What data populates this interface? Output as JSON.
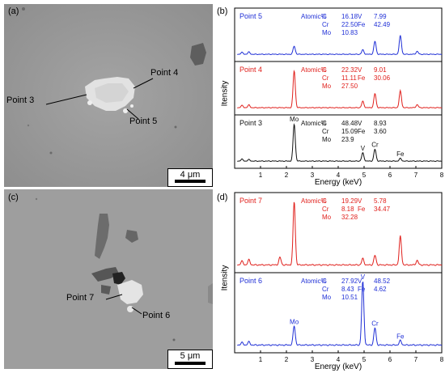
{
  "panels": {
    "a": {
      "letter": "(a)",
      "scale_label": "4 μm",
      "point_labels": [
        "Point 4",
        "Point 3",
        "Point 5"
      ]
    },
    "b": {
      "letter": "(b)"
    },
    "c": {
      "letter": "(c)",
      "scale_label": "5 μm",
      "point_labels": [
        "Point 7",
        "Point 6"
      ]
    },
    "d": {
      "letter": "(d)"
    }
  },
  "colors": {
    "blue": "#1f2fd6",
    "red": "#e0201c",
    "black": "#111111"
  },
  "chart_data": [
    {
      "type": "line",
      "panel": "b",
      "xlabel": "Energy (keV)",
      "ylabel": "Itensity",
      "xlim": [
        0,
        8
      ],
      "xticks": [
        1,
        2,
        3,
        4,
        5,
        6,
        7,
        8
      ],
      "spectra": [
        {
          "name": "Point 5",
          "color": "#1f2fd6",
          "table": [
            [
              "Atomic%",
              "C",
              "16.18",
              "V",
              "7.99"
            ],
            [
              "",
              "Cr",
              "22.50",
              "Fe",
              "42.49"
            ],
            [
              "",
              "Mo",
              "10.83",
              "",
              ""
            ]
          ],
          "peaks": [
            [
              0.28,
              0.05
            ],
            [
              0.55,
              0.06
            ],
            [
              2.3,
              0.22
            ],
            [
              4.95,
              0.12
            ],
            [
              5.42,
              0.35
            ],
            [
              6.4,
              0.5
            ],
            [
              7.05,
              0.08
            ]
          ],
          "peak_labels": []
        },
        {
          "name": "Point 4",
          "color": "#e0201c",
          "table": [
            [
              "Atomic%",
              "C",
              "22.32",
              "V",
              "9.01"
            ],
            [
              "",
              "Cr",
              "11.11",
              "Fe",
              "30.06"
            ],
            [
              "",
              "Mo",
              "27.50",
              "",
              ""
            ]
          ],
          "peaks": [
            [
              0.28,
              0.06
            ],
            [
              0.55,
              0.07
            ],
            [
              2.3,
              1.0
            ],
            [
              4.95,
              0.17
            ],
            [
              5.42,
              0.38
            ],
            [
              6.4,
              0.45
            ],
            [
              7.05,
              0.08
            ]
          ],
          "peak_labels": []
        },
        {
          "name": "Point 3",
          "color": "#111111",
          "table": [
            [
              "Atomic%",
              "C",
              "48.48",
              "V",
              "8.93"
            ],
            [
              "",
              "Cr",
              "15.09",
              "Fe",
              "3.60"
            ],
            [
              "",
              "Mo",
              "23.9",
              "",
              ""
            ]
          ],
          "peaks": [
            [
              0.28,
              0.05
            ],
            [
              0.55,
              0.04
            ],
            [
              2.3,
              1.0
            ],
            [
              4.95,
              0.22
            ],
            [
              5.42,
              0.32
            ],
            [
              6.4,
              0.07
            ]
          ],
          "peak_labels": [
            {
              "text": "Mo",
              "x": 2.3
            },
            {
              "text": "V",
              "x": 4.95
            },
            {
              "text": "Cr",
              "x": 5.42
            },
            {
              "text": "Fe",
              "x": 6.4
            }
          ]
        }
      ]
    },
    {
      "type": "line",
      "panel": "d",
      "xlabel": "Energy (keV)",
      "ylabel": "Itensity",
      "xlim": [
        0,
        8
      ],
      "xticks": [
        1,
        2,
        3,
        4,
        5,
        6,
        7,
        8
      ],
      "spectra": [
        {
          "name": "Point 7",
          "color": "#e0201c",
          "table": [
            [
              "Atomic%",
              "C",
              "19.29",
              "V",
              "5.78"
            ],
            [
              "",
              "Cr",
              "8.18",
              "Fe",
              "34.47"
            ],
            [
              "",
              "Mo",
              "32.28",
              "",
              ""
            ]
          ],
          "peaks": [
            [
              0.28,
              0.06
            ],
            [
              0.55,
              0.08
            ],
            [
              1.75,
              0.12
            ],
            [
              2.3,
              1.0
            ],
            [
              4.95,
              0.1
            ],
            [
              5.42,
              0.15
            ],
            [
              6.4,
              0.45
            ],
            [
              7.05,
              0.07
            ]
          ],
          "peak_labels": []
        },
        {
          "name": "Point 6",
          "color": "#1f2fd6",
          "table": [
            [
              "Atomic%",
              "C",
              "27.92",
              "V",
              "48.52"
            ],
            [
              "",
              "Cr",
              "8.43",
              "Fe",
              "4.62"
            ],
            [
              "",
              "Mo",
              "10.51",
              "",
              ""
            ]
          ],
          "peaks": [
            [
              0.28,
              0.04
            ],
            [
              0.55,
              0.05
            ],
            [
              2.3,
              0.3
            ],
            [
              4.95,
              1.0
            ],
            [
              5.42,
              0.27
            ],
            [
              6.4,
              0.07
            ]
          ],
          "peak_labels": [
            {
              "text": "Mo",
              "x": 2.3
            },
            {
              "text": "V",
              "x": 4.95
            },
            {
              "text": "Cr",
              "x": 5.42
            },
            {
              "text": "Fe",
              "x": 6.4
            }
          ]
        }
      ]
    }
  ]
}
